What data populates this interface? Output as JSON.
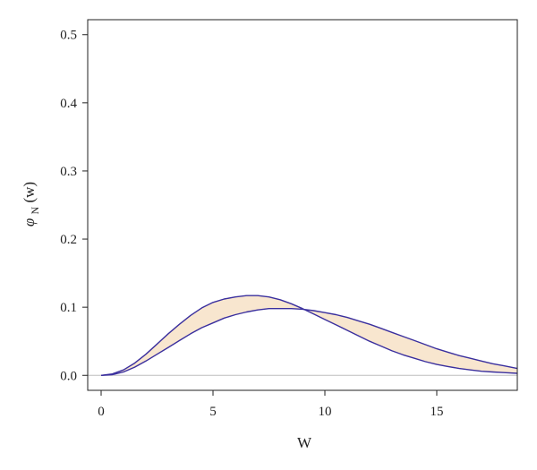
{
  "chart_data": {
    "type": "area",
    "xlabel": "W",
    "ylabel": {
      "base": "φ",
      "subscript": "N",
      "suffix": " (w)"
    },
    "xlim": [
      -0.6,
      18.6
    ],
    "ylim": [
      -0.022,
      0.522
    ],
    "xticks": [
      0,
      5,
      10,
      15
    ],
    "yticks": [
      0.0,
      0.1,
      0.2,
      0.3,
      0.4,
      0.5
    ],
    "ytick_labels": [
      "0.0",
      "0.1",
      "0.2",
      "0.3",
      "0.4",
      "0.5"
    ],
    "grid": false,
    "band_fill": "#f8e6cf",
    "line_color": "#3a2f9e",
    "baseline": {
      "y": 0,
      "color": "#bdbdbd"
    },
    "series": [
      {
        "x": [
          0,
          0.5,
          1,
          1.5,
          2,
          2.5,
          3,
          3.5,
          4,
          4.5,
          5,
          5.5,
          6,
          6.5,
          7,
          7.5,
          8,
          8.5,
          9,
          9.5,
          10,
          10.5,
          11,
          11.5,
          12,
          12.5,
          13,
          13.5,
          14,
          14.5,
          15,
          15.5,
          16,
          16.5,
          17,
          17.5,
          18,
          18.6
        ],
        "y": [
          0.0,
          0.002,
          0.008,
          0.018,
          0.031,
          0.046,
          0.061,
          0.075,
          0.088,
          0.099,
          0.107,
          0.112,
          0.115,
          0.117,
          0.117,
          0.115,
          0.111,
          0.105,
          0.098,
          0.09,
          0.082,
          0.074,
          0.066,
          0.058,
          0.05,
          0.043,
          0.036,
          0.03,
          0.025,
          0.02,
          0.016,
          0.013,
          0.01,
          0.008,
          0.006,
          0.005,
          0.004,
          0.003
        ]
      },
      {
        "x": [
          0,
          0.5,
          1,
          1.5,
          2,
          2.5,
          3,
          3.5,
          4,
          4.5,
          5,
          5.5,
          6,
          6.5,
          7,
          7.5,
          8,
          8.5,
          9,
          9.5,
          10,
          10.5,
          11,
          11.5,
          12,
          12.5,
          13,
          13.5,
          14,
          14.5,
          15,
          15.5,
          16,
          16.5,
          17,
          17.5,
          18,
          18.6
        ],
        "y": [
          0.0,
          0.001,
          0.005,
          0.012,
          0.021,
          0.031,
          0.041,
          0.051,
          0.061,
          0.07,
          0.077,
          0.084,
          0.089,
          0.093,
          0.096,
          0.098,
          0.098,
          0.098,
          0.097,
          0.095,
          0.092,
          0.089,
          0.085,
          0.08,
          0.075,
          0.069,
          0.063,
          0.057,
          0.051,
          0.045,
          0.039,
          0.034,
          0.029,
          0.025,
          0.021,
          0.017,
          0.014,
          0.01
        ]
      }
    ]
  }
}
